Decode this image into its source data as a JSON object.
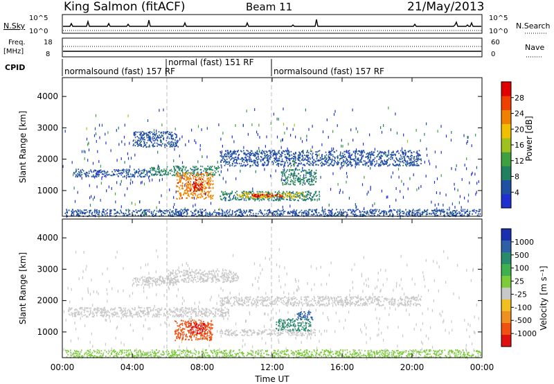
{
  "header": {
    "station": "King Salmon (fitACF)",
    "beam": "Beam 11",
    "date": "21/May/2013"
  },
  "info_panels": {
    "nsky_label": "N.Sky",
    "nsky_ticks": [
      "10^5",
      "10^0"
    ],
    "nsearch_label": "N.Search",
    "nsearch_ticks": [
      "10^5",
      "10^0"
    ],
    "freq_label": [
      "Freq.",
      "[MHz]"
    ],
    "freq_ticks": [
      "18",
      "8"
    ],
    "nave_label": "Nave",
    "nave_ticks": [
      "60",
      "0"
    ],
    "cpid_label": "CPID",
    "cpid_segments": [
      {
        "label": "normalsound (fast) 157 RF",
        "start": 0,
        "end": 6
      },
      {
        "label": "normal (fast) 151 RF",
        "start": 6,
        "end": 12
      },
      {
        "label": "normalsound (fast) 157 RF",
        "start": 12,
        "end": 24
      }
    ]
  },
  "x_axis": {
    "label": "Time UT",
    "ticks": [
      "00:00",
      "04:00",
      "08:00",
      "12:00",
      "16:00",
      "20:00",
      "00:00"
    ],
    "range_hours": [
      0,
      24
    ]
  },
  "y_axis": {
    "label": "Slant Range [km]",
    "ticks": [
      "1000",
      "2000",
      "3000",
      "4000"
    ],
    "range_km": [
      180,
      4600
    ]
  },
  "colorbars": {
    "power": {
      "label": "Power [dB]",
      "ticks": [
        "4",
        "8",
        "12",
        "16",
        "20",
        "24",
        "28"
      ],
      "colors": [
        "#2030d0",
        "#2050a0",
        "#208060",
        "#40a040",
        "#a0c020",
        "#f0c000",
        "#f08000",
        "#f04000",
        "#e00000"
      ]
    },
    "velocity": {
      "label": "Velocity [m s⁻¹]",
      "ticks": [
        "1000",
        "500",
        "100",
        "25",
        "-25",
        "-100",
        "-500",
        "-1000"
      ],
      "colors": [
        "#1a2fb0",
        "#2e60a8",
        "#2a8a6e",
        "#3fb050",
        "#7ccc3a",
        "#c8c8c8",
        "#f0c020",
        "#f09020",
        "#f05010",
        "#e01010"
      ]
    }
  },
  "chart_data": [
    {
      "type": "heatmap",
      "title": "Power [dB]",
      "xlabel": "Time UT",
      "ylabel": "Slant Range [km]",
      "xlim": [
        0,
        24
      ],
      "ylim": [
        180,
        4600
      ],
      "features": [
        {
          "t0": 0.6,
          "t1": 5.0,
          "r0": 1450,
          "r1": 1700,
          "value": 4
        },
        {
          "t0": 5.0,
          "t1": 9.0,
          "r0": 1500,
          "r1": 1800,
          "value": 8
        },
        {
          "t0": 6.5,
          "t1": 8.6,
          "r0": 750,
          "r1": 1600,
          "value": 24
        },
        {
          "t0": 7.4,
          "t1": 8.0,
          "r0": 1000,
          "r1": 1400,
          "value": 28
        },
        {
          "t0": 9.0,
          "t1": 14.8,
          "r0": 700,
          "r1": 1000,
          "value": 8
        },
        {
          "t0": 10.0,
          "t1": 13.8,
          "r0": 780,
          "r1": 950,
          "value": 20
        },
        {
          "t0": 10.8,
          "t1": 12.6,
          "r0": 820,
          "r1": 900,
          "value": 28
        },
        {
          "t0": 4.0,
          "t1": 6.6,
          "r0": 2400,
          "r1": 2900,
          "value": 4
        },
        {
          "t0": 9.0,
          "t1": 20.5,
          "r0": 1800,
          "r1": 2300,
          "value": 4
        },
        {
          "t0": 12.5,
          "t1": 14.5,
          "r0": 1200,
          "r1": 1700,
          "value": 8
        },
        {
          "t0": 0.1,
          "t1": 23.9,
          "r0": 200,
          "r1": 420,
          "value": 4
        }
      ]
    },
    {
      "type": "heatmap",
      "title": "Velocity [m s⁻¹]",
      "xlabel": "Time UT",
      "ylabel": "Slant Range [km]",
      "xlim": [
        0,
        24
      ],
      "ylim": [
        180,
        4600
      ],
      "features": [
        {
          "t0": 0.3,
          "t1": 9.5,
          "r0": 1500,
          "r1": 1800,
          "value": 0
        },
        {
          "t0": 6.4,
          "t1": 8.6,
          "r0": 750,
          "r1": 1400,
          "value": -500
        },
        {
          "t0": 7.2,
          "t1": 8.2,
          "r0": 950,
          "r1": 1300,
          "value": -1000
        },
        {
          "t0": 9.0,
          "t1": 14.5,
          "r0": 900,
          "r1": 1100,
          "value": 0
        },
        {
          "t0": 12.2,
          "t1": 14.2,
          "r0": 1050,
          "r1": 1450,
          "value": 100
        },
        {
          "t0": 13.4,
          "t1": 14.3,
          "r0": 1400,
          "r1": 1700,
          "value": 500
        },
        {
          "t0": 4.0,
          "t1": 6.6,
          "r0": 2500,
          "r1": 2800,
          "value": 0
        },
        {
          "t0": 9.0,
          "t1": 20.5,
          "r0": 1850,
          "r1": 2150,
          "value": 0
        },
        {
          "t0": 6.0,
          "t1": 10.0,
          "r0": 2600,
          "r1": 3000,
          "value": 0
        },
        {
          "t0": 0.1,
          "t1": 23.9,
          "r0": 200,
          "r1": 450,
          "value": 25
        }
      ]
    }
  ]
}
